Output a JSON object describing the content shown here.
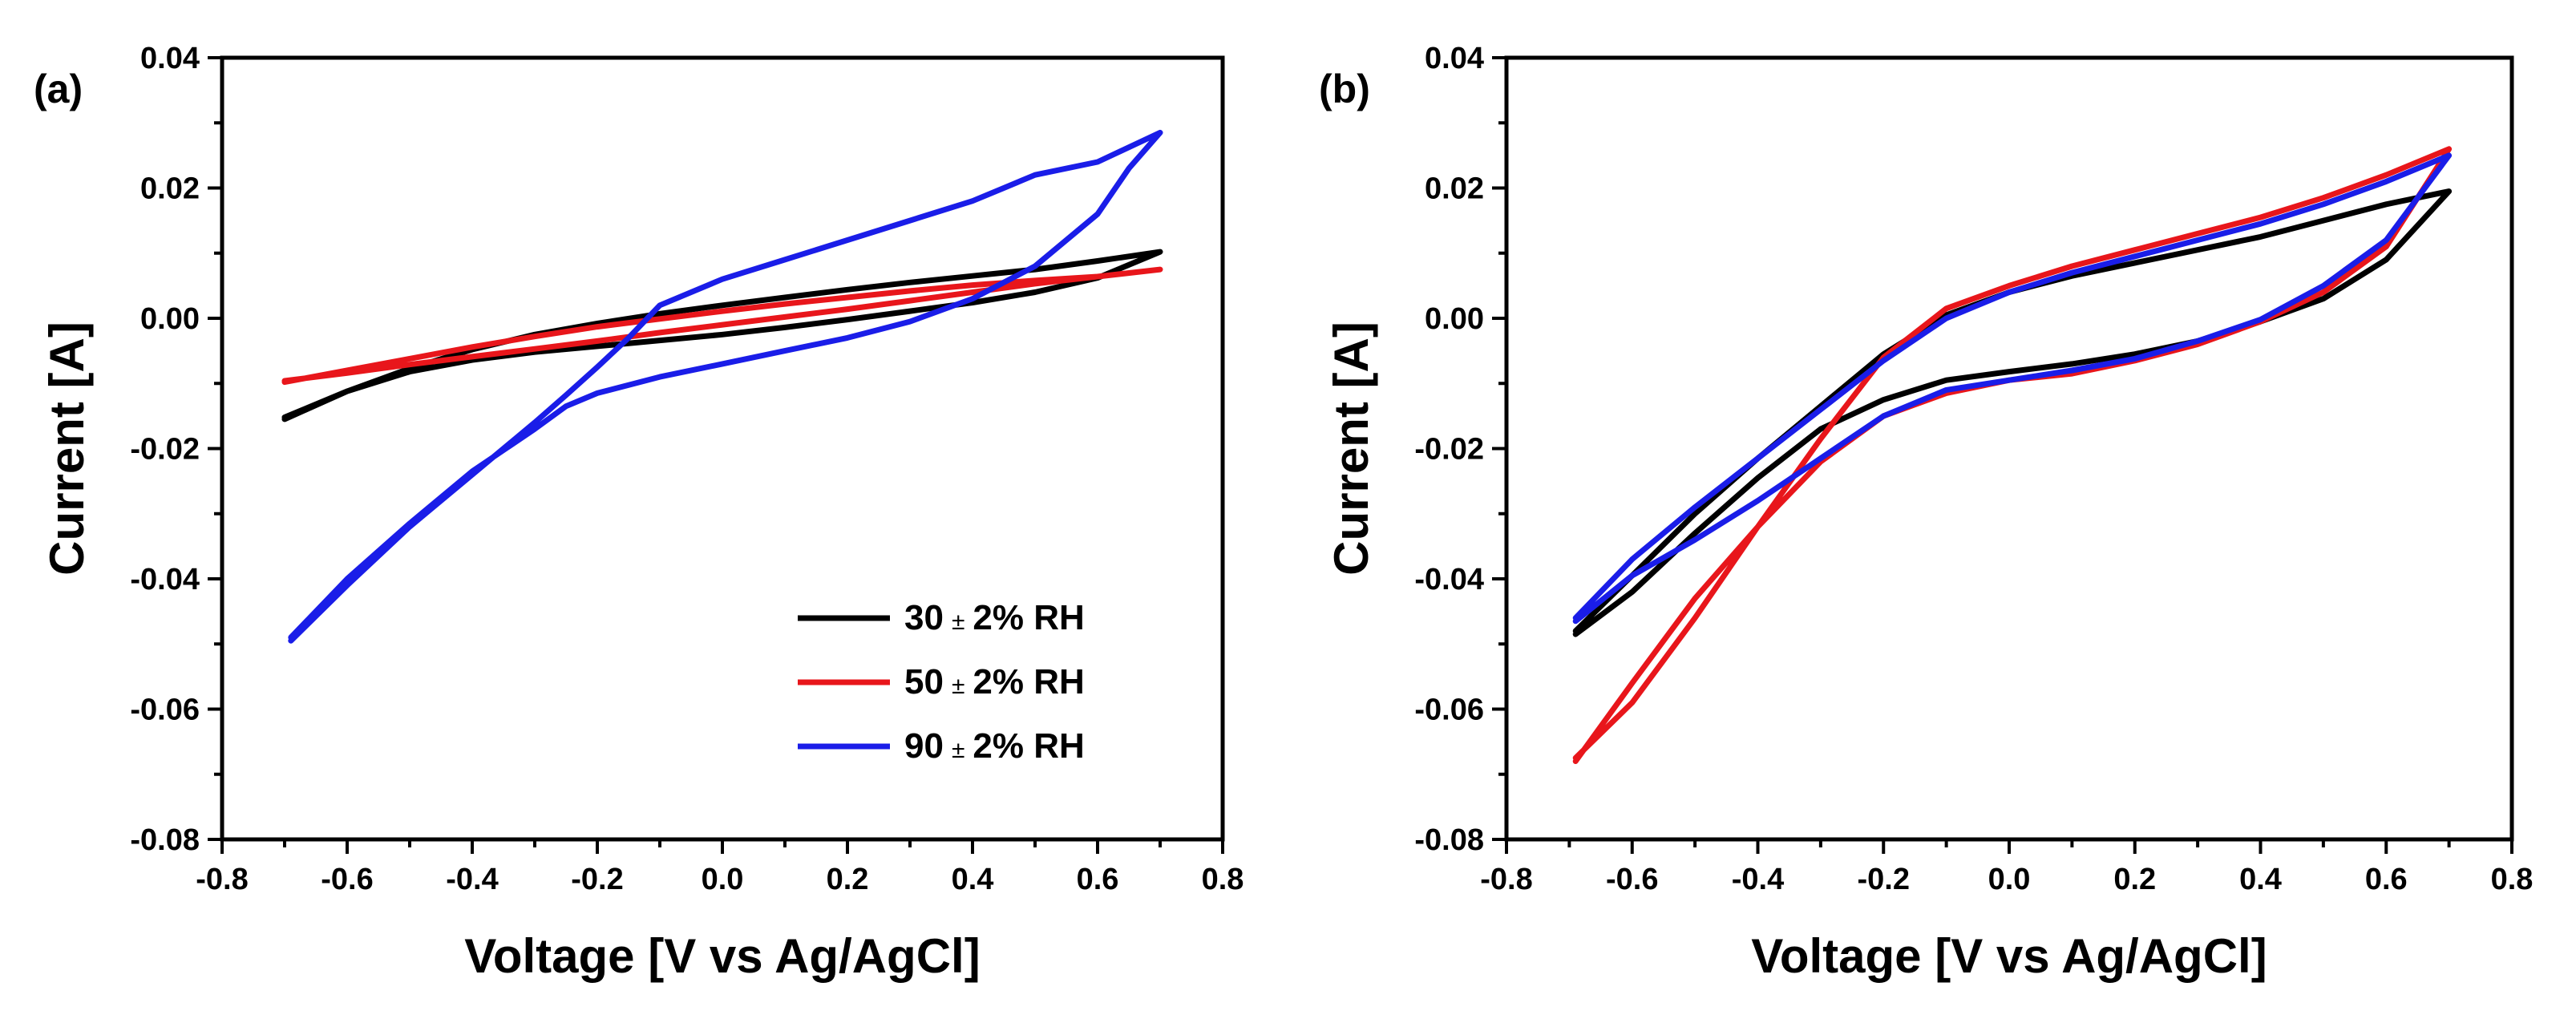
{
  "chart_data": [
    {
      "panel_label": "(a)",
      "type": "line",
      "xlabel": "Voltage [V vs Ag/AgCl]",
      "ylabel": "Current [A]",
      "xlim": [
        -0.8,
        0.8
      ],
      "ylim": [
        -0.08,
        0.04
      ],
      "xticks": [
        -0.8,
        -0.6,
        -0.4,
        -0.2,
        0.0,
        0.2,
        0.4,
        0.6,
        0.8
      ],
      "yticks": [
        -0.08,
        -0.06,
        -0.04,
        -0.02,
        0.0,
        0.02,
        0.04
      ],
      "xtick_labels": [
        "-0.8",
        "-0.6",
        "-0.4",
        "-0.2",
        "0.0",
        "0.2",
        "0.4",
        "0.6",
        "0.8"
      ],
      "ytick_labels": [
        "-0.08",
        "-0.06",
        "-0.04",
        "-0.02",
        "0.00",
        "0.02",
        "0.04"
      ],
      "grid": false,
      "legend": {
        "placement": "bottom-right",
        "entries": [
          {
            "prefix": "30",
            "pm": "±",
            "suffix": "2% RH",
            "color": "#000000"
          },
          {
            "prefix": "50",
            "pm": "±",
            "suffix": "2% RH",
            "color": "#e8161b"
          },
          {
            "prefix": "90",
            "pm": "±",
            "suffix": "2% RH",
            "color": "#1a1de8"
          }
        ]
      },
      "series": [
        {
          "color": "#000000",
          "x": [
            -0.7,
            -0.6,
            -0.5,
            -0.4,
            -0.3,
            -0.2,
            -0.1,
            0.0,
            0.1,
            0.2,
            0.3,
            0.4,
            0.5,
            0.6,
            0.7,
            0.6,
            0.5,
            0.4,
            0.3,
            0.2,
            0.1,
            0.0,
            -0.1,
            -0.2,
            -0.3,
            -0.4,
            -0.5,
            -0.6,
            -0.7
          ],
          "y": [
            -0.0155,
            -0.0112,
            -0.0082,
            -0.0064,
            -0.0052,
            -0.0043,
            -0.0034,
            -0.0025,
            -0.0014,
            -0.0002,
            0.0011,
            0.0024,
            0.004,
            0.0062,
            0.0102,
            0.0088,
            0.0075,
            0.0065,
            0.0055,
            0.0044,
            0.0032,
            0.002,
            0.0007,
            -0.0008,
            -0.0025,
            -0.0048,
            -0.0077,
            -0.0112,
            -0.0152
          ]
        },
        {
          "color": "#e8161b",
          "x": [
            -0.7,
            -0.6,
            -0.5,
            -0.4,
            -0.3,
            -0.2,
            -0.1,
            0.0,
            0.1,
            0.2,
            0.3,
            0.4,
            0.5,
            0.6,
            0.7,
            0.6,
            0.5,
            0.4,
            0.3,
            0.2,
            0.1,
            0.0,
            -0.1,
            -0.2,
            -0.3,
            -0.4,
            -0.5,
            -0.6,
            -0.7
          ],
          "y": [
            -0.0098,
            -0.008,
            -0.0062,
            -0.0044,
            -0.0028,
            -0.0013,
            -0.0001,
            0.0011,
            0.0022,
            0.0032,
            0.0042,
            0.0051,
            0.0058,
            0.0064,
            0.0075,
            0.0064,
            0.0053,
            0.004,
            0.0027,
            0.0014,
            0.0002,
            -0.001,
            -0.0022,
            -0.0035,
            -0.0047,
            -0.0059,
            -0.0071,
            -0.0084,
            -0.0096
          ]
        },
        {
          "color": "#1a1de8",
          "x": [
            -0.69,
            -0.6,
            -0.5,
            -0.4,
            -0.3,
            -0.25,
            -0.2,
            -0.15,
            -0.1,
            0.0,
            0.1,
            0.2,
            0.3,
            0.4,
            0.45,
            0.5,
            0.6,
            0.7,
            0.65,
            0.6,
            0.5,
            0.4,
            0.3,
            0.2,
            0.1,
            0.0,
            -0.1,
            -0.2,
            -0.25,
            -0.3,
            -0.4,
            -0.5,
            -0.6,
            -0.69
          ],
          "y": [
            -0.0495,
            -0.041,
            -0.032,
            -0.024,
            -0.016,
            -0.0118,
            -0.0075,
            -0.003,
            0.002,
            0.006,
            0.009,
            0.012,
            0.015,
            0.018,
            0.02,
            0.022,
            0.024,
            0.0285,
            0.023,
            0.016,
            0.008,
            0.003,
            -0.0005,
            -0.003,
            -0.005,
            -0.007,
            -0.009,
            -0.0115,
            -0.0135,
            -0.017,
            -0.0235,
            -0.0315,
            -0.04,
            -0.049
          ]
        }
      ]
    },
    {
      "panel_label": "(b)",
      "type": "line",
      "xlabel": "Voltage [V vs Ag/AgCl]",
      "ylabel": "Current [A]",
      "xlim": [
        -0.8,
        0.8
      ],
      "ylim": [
        -0.08,
        0.04
      ],
      "xticks": [
        -0.8,
        -0.6,
        -0.4,
        -0.2,
        0.0,
        0.2,
        0.4,
        0.6,
        0.8
      ],
      "yticks": [
        -0.08,
        -0.06,
        -0.04,
        -0.02,
        0.0,
        0.02,
        0.04
      ],
      "xtick_labels": [
        "-0.8",
        "-0.6",
        "-0.4",
        "-0.2",
        "0.0",
        "0.2",
        "0.4",
        "0.6",
        "0.8"
      ],
      "ytick_labels": [
        "-0.08",
        "-0.06",
        "-0.04",
        "-0.02",
        "0.00",
        "0.02",
        "0.04"
      ],
      "grid": false,
      "series": [
        {
          "color": "#000000",
          "x": [
            -0.69,
            -0.6,
            -0.5,
            -0.4,
            -0.3,
            -0.2,
            -0.1,
            0.0,
            0.1,
            0.2,
            0.3,
            0.4,
            0.5,
            0.6,
            0.7,
            0.6,
            0.5,
            0.4,
            0.3,
            0.2,
            0.1,
            0.0,
            -0.1,
            -0.2,
            -0.3,
            -0.4,
            -0.5,
            -0.6,
            -0.69
          ],
          "y": [
            -0.0485,
            -0.042,
            -0.033,
            -0.0245,
            -0.017,
            -0.0125,
            -0.0095,
            -0.0082,
            -0.007,
            -0.0055,
            -0.0035,
            -0.0005,
            0.003,
            0.009,
            0.0195,
            0.0175,
            0.015,
            0.0125,
            0.0105,
            0.0085,
            0.0065,
            0.004,
            0.0005,
            -0.0055,
            -0.0135,
            -0.0215,
            -0.03,
            -0.0395,
            -0.048
          ]
        },
        {
          "color": "#e8161b",
          "x": [
            -0.69,
            -0.6,
            -0.5,
            -0.4,
            -0.3,
            -0.2,
            -0.1,
            0.0,
            0.1,
            0.2,
            0.3,
            0.4,
            0.5,
            0.6,
            0.7,
            0.6,
            0.5,
            0.4,
            0.3,
            0.2,
            0.1,
            0.0,
            -0.1,
            -0.2,
            -0.3,
            -0.4,
            -0.5,
            -0.6,
            -0.69
          ],
          "y": [
            -0.068,
            -0.056,
            -0.043,
            -0.032,
            -0.022,
            -0.015,
            -0.0115,
            -0.0095,
            -0.0085,
            -0.0065,
            -0.004,
            -0.0005,
            0.004,
            0.011,
            0.026,
            0.022,
            0.0185,
            0.0155,
            0.013,
            0.0105,
            0.008,
            0.005,
            0.0015,
            -0.006,
            -0.0185,
            -0.032,
            -0.046,
            -0.059,
            -0.0675
          ]
        },
        {
          "color": "#1a1de8",
          "x": [
            -0.69,
            -0.6,
            -0.5,
            -0.4,
            -0.3,
            -0.2,
            -0.1,
            0.0,
            0.1,
            0.2,
            0.3,
            0.4,
            0.5,
            0.6,
            0.7,
            0.6,
            0.5,
            0.4,
            0.3,
            0.2,
            0.1,
            0.0,
            -0.1,
            -0.2,
            -0.3,
            -0.4,
            -0.5,
            -0.6,
            -0.69
          ],
          "y": [
            -0.0465,
            -0.0395,
            -0.034,
            -0.028,
            -0.0215,
            -0.015,
            -0.011,
            -0.0095,
            -0.008,
            -0.0062,
            -0.0035,
            -0.0002,
            0.005,
            0.012,
            0.025,
            0.021,
            0.0175,
            0.0145,
            0.012,
            0.0095,
            0.007,
            0.004,
            0.0,
            -0.0065,
            -0.014,
            -0.0215,
            -0.029,
            -0.037,
            -0.046
          ]
        }
      ]
    }
  ]
}
